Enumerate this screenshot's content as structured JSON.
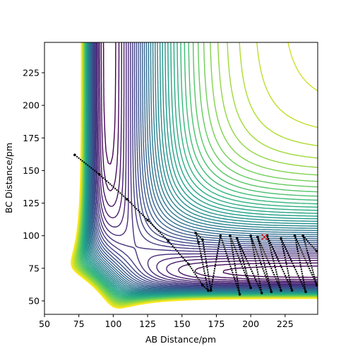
{
  "chart_data": {
    "type": "contour",
    "xlabel": "AB Distance/pm",
    "ylabel": "BC Distance/pm",
    "xlim": [
      50,
      248.7
    ],
    "ylim": [
      39.7,
      248.3
    ],
    "xticks": [
      50,
      75,
      100,
      125,
      150,
      175,
      200,
      225
    ],
    "yticks": [
      50,
      75,
      100,
      125,
      150,
      175,
      200,
      225
    ],
    "colormap": "viridis",
    "trajectory": {
      "color": "#000000",
      "x": [
        72,
        90,
        110,
        125,
        140,
        155,
        165,
        169,
        162,
        160,
        165,
        171,
        178,
        192,
        185,
        200,
        190,
        208,
        200,
        215,
        205,
        222,
        212,
        230,
        222,
        240,
        232,
        248,
        238,
        248
      ],
      "y": [
        162,
        147,
        128,
        112,
        96,
        78,
        62,
        58,
        95,
        102,
        97,
        58,
        100,
        55,
        100,
        60,
        98,
        56,
        100,
        57,
        99,
        58,
        100,
        58,
        98,
        57,
        100,
        62,
        100,
        88
      ]
    },
    "start_point": {
      "x": 210,
      "y": 99,
      "color": "#d62728"
    }
  }
}
